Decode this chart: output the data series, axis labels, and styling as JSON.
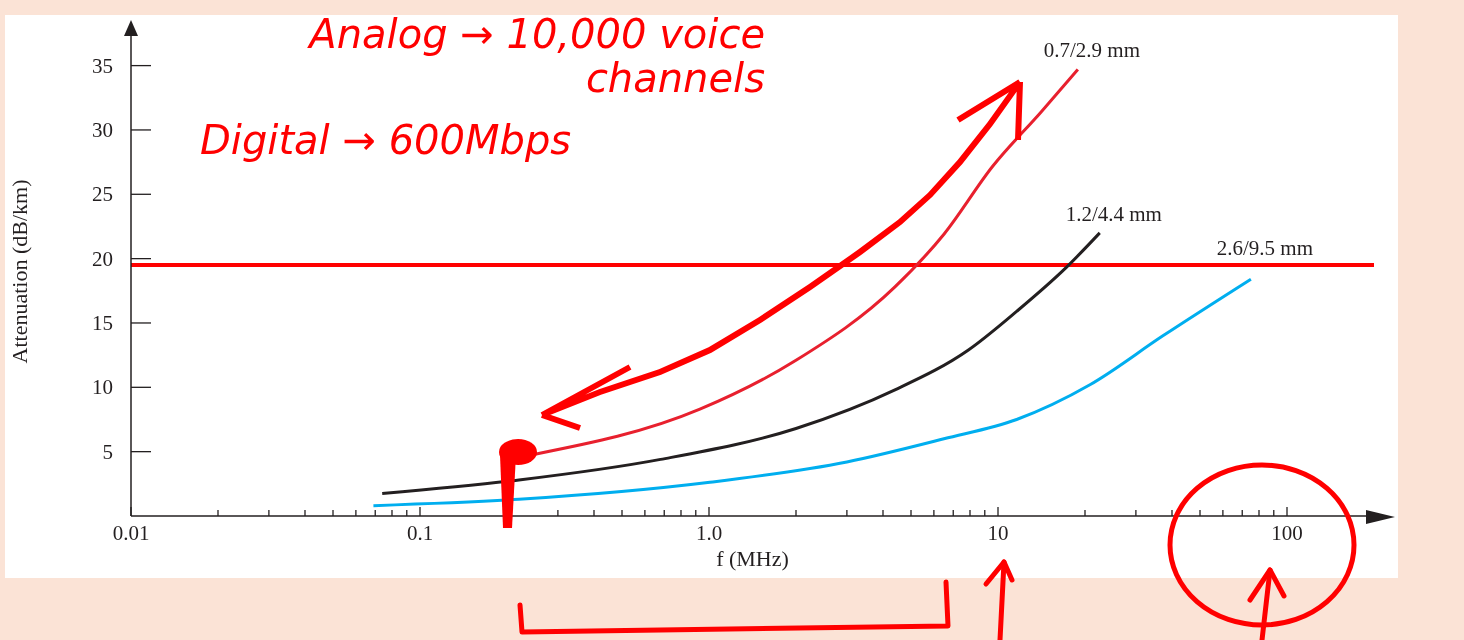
{
  "chart_data": {
    "type": "line",
    "xlabel": "f (MHz)",
    "ylabel": "Attenuation (dB/km)",
    "log": "x",
    "xlim": [
      0.01,
      200
    ],
    "xticks": [
      0.01,
      {
        "value": 0.02,
        "label": null
      },
      {
        "value": 0.03,
        "label": null
      },
      {
        "value": 0.04,
        "label": null
      },
      {
        "value": 0.05,
        "label": null
      },
      {
        "value": 0.06,
        "label": null
      },
      {
        "value": 0.07,
        "label": null
      },
      {
        "value": 0.08,
        "label": null
      },
      {
        "value": 0.09,
        "label": null
      },
      0.1,
      {
        "value": 0.2,
        "label": null
      },
      {
        "value": 0.3,
        "label": null
      },
      {
        "value": 0.4,
        "label": null
      },
      {
        "value": 0.5,
        "label": null
      },
      {
        "value": 0.6,
        "label": null
      },
      {
        "value": 0.7,
        "label": null
      },
      {
        "value": 0.8,
        "label": null
      },
      {
        "value": 0.9,
        "label": null
      },
      {
        "value": 1,
        "label": "1.0"
      },
      {
        "value": 2,
        "label": null
      },
      {
        "value": 3,
        "label": null
      },
      {
        "value": 4,
        "label": null
      },
      {
        "value": 5,
        "label": null
      },
      {
        "value": 6,
        "label": null
      },
      {
        "value": 7,
        "label": null
      },
      {
        "value": 8,
        "label": null
      },
      {
        "value": 9,
        "label": null
      },
      10,
      {
        "value": 20,
        "label": null
      },
      {
        "value": 30,
        "label": null
      },
      {
        "value": 40,
        "label": null
      },
      {
        "value": 50,
        "label": null
      },
      {
        "value": 60,
        "label": null
      },
      {
        "value": 70,
        "label": null
      },
      {
        "value": 80,
        "label": null
      },
      {
        "value": 90,
        "label": null
      },
      100
    ],
    "ylim": [
      0,
      38
    ],
    "yticks": [
      5,
      10,
      15,
      20,
      25,
      30,
      35
    ],
    "series": [
      {
        "name": "0.7/2.9 mm",
        "color": "#e8202e",
        "x": [
          0.25,
          0.93,
          2.0,
          4.4,
          6.5,
          9.6,
          14.1,
          18.9
        ],
        "values": [
          4.8,
          8.3,
          12.1,
          17.8,
          21.9,
          27.2,
          31.4,
          34.7
        ]
      },
      {
        "name": "1.2/4.4 mm",
        "color": "#231f20",
        "x": [
          0.074,
          0.22,
          0.68,
          2.0,
          4.4,
          7.9,
          11.6,
          17.2,
          22.5
        ],
        "values": [
          1.75,
          2.8,
          4.4,
          6.8,
          9.8,
          12.9,
          15.9,
          19.3,
          22.0
        ]
      },
      {
        "name": "2.6/9.5 mm",
        "color": "#00aeef",
        "x": [
          0.069,
          0.22,
          0.99,
          3.0,
          6.5,
          11.6,
          20.8,
          37.2,
          75
        ],
        "values": [
          0.8,
          1.3,
          2.6,
          4.2,
          6.0,
          7.5,
          10.2,
          14.0,
          18.4
        ]
      }
    ],
    "ref_lines": [
      {
        "axis": "y",
        "value": 19.5,
        "color": "#ff0000"
      }
    ],
    "annotations": [
      "Analog → 10,000 voice channels",
      "Digital → 600Mbps"
    ]
  }
}
